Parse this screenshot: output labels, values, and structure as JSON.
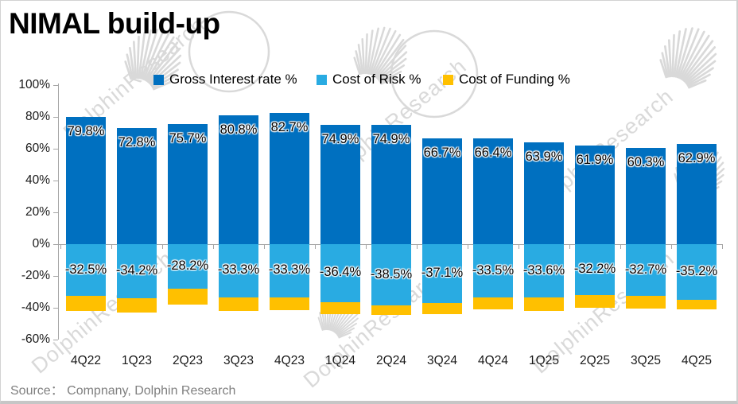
{
  "title": "NIMAL build-up",
  "source": "Source： Compnany, Dolphin Research",
  "watermark_text": "DolphinResearch",
  "colors": {
    "gross_interest": "#0070C0",
    "cost_of_risk": "#29ABE2",
    "cost_of_funding": "#FFC000",
    "axis": "#a6a6a6",
    "label_text": "#000000",
    "source_text": "#808080",
    "watermark": "#d9d9d9"
  },
  "chart_data": {
    "type": "bar",
    "stacked": true,
    "title": "NIMAL build-up",
    "legend_position": "top",
    "grid": false,
    "categories": [
      "4Q22",
      "1Q23",
      "2Q23",
      "3Q23",
      "4Q23",
      "1Q24",
      "2Q24",
      "3Q24",
      "4Q24",
      "1Q25",
      "2Q25",
      "3Q25",
      "4Q25"
    ],
    "series": [
      {
        "name": "Gross Interest rate %",
        "color": "#0070C0",
        "values": [
          79.8,
          72.8,
          75.7,
          80.8,
          82.7,
          74.9,
          74.9,
          66.7,
          66.4,
          63.9,
          61.9,
          60.3,
          62.9
        ],
        "labels_visible": true
      },
      {
        "name": "Cost of Risk %",
        "color": "#29ABE2",
        "values": [
          -32.5,
          -34.2,
          -28.2,
          -33.3,
          -33.3,
          -36.4,
          -38.5,
          -37.1,
          -33.5,
          -33.6,
          -32.2,
          -32.7,
          -35.2
        ],
        "labels_visible": true
      },
      {
        "name": "Cost of Funding %",
        "color": "#FFC000",
        "values": [
          -9.5,
          -9.0,
          -10.0,
          -8.5,
          -8.0,
          -7.5,
          -6.0,
          -7.0,
          -7.5,
          -8.5,
          -8.0,
          -8.0,
          -6.0
        ],
        "labels_visible": false,
        "estimated": true
      }
    ],
    "y_axis": {
      "tick_labels": [
        "100%",
        "80%",
        "60%",
        "40%",
        "20%",
        "0%",
        "-20%",
        "-40%",
        "-60%"
      ],
      "tick_values": [
        100,
        80,
        60,
        40,
        20,
        0,
        -20,
        -40,
        -60
      ],
      "min": -60,
      "max": 100
    }
  }
}
